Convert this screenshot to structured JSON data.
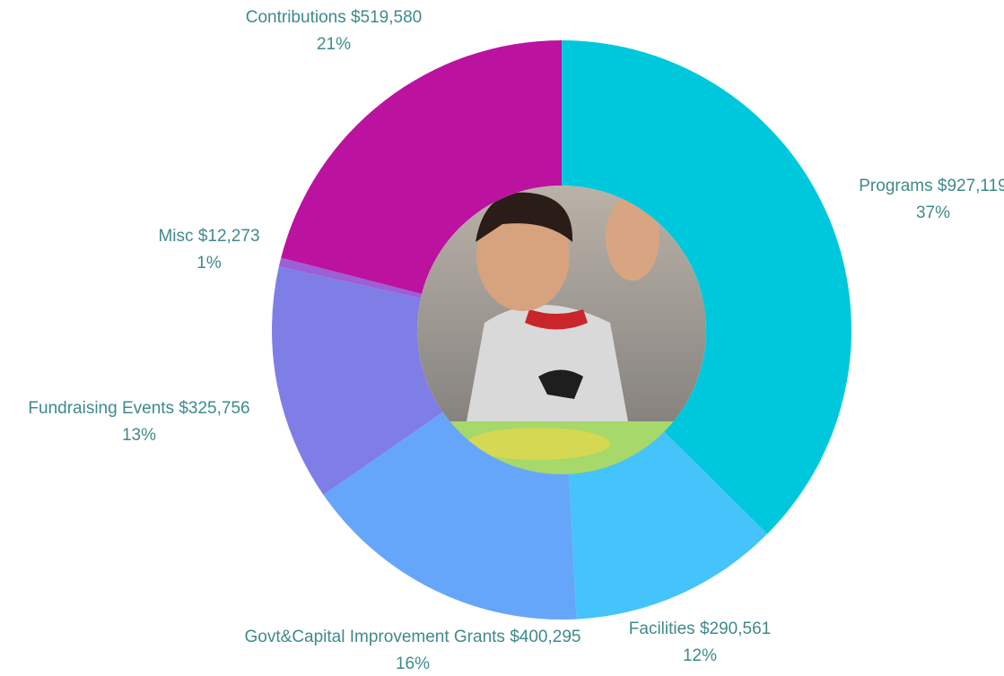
{
  "chart_data": {
    "type": "donut",
    "categories": [
      "Programs",
      "Facilities",
      "Govt&Capital Improvement Grants",
      "Fundraising Events",
      "Misc",
      "Contributions"
    ],
    "values": [
      927119,
      290561,
      400295,
      325756,
      12273,
      519580
    ],
    "value_labels": [
      "$927,119",
      "$290,561",
      "$400,295",
      "$325,756",
      "$12,273",
      "$519,580"
    ],
    "percent_labels": [
      "37%",
      "12%",
      "16%",
      "13%",
      "1%",
      "21%"
    ],
    "colors": [
      "#00c8dc",
      "#45c3fb",
      "#66a6fa",
      "#7e7ee6",
      "#9d5fd6",
      "#bb12a0"
    ]
  }
}
